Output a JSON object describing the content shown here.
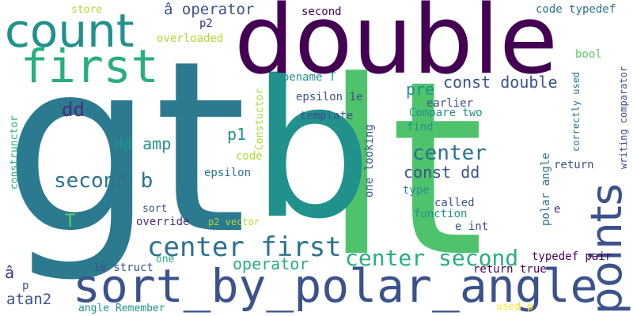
{
  "palette": {
    "background": "#ffffff",
    "dark_purple": "#440154",
    "purple": "#472d7b",
    "indigo": "#3b528b",
    "blue": "#2c728e",
    "teal": "#21918c",
    "green_teal": "#28ae80",
    "green": "#5ec962",
    "bright_green": "#4ec36b",
    "lime": "#addc30",
    "yellow": "#fde725"
  },
  "words": [
    {
      "text": "lt",
      "color": "#4ec36b"
    },
    {
      "text": "gt",
      "color": "#2c7a8f"
    },
    {
      "text": "b",
      "color": "#21918c"
    },
    {
      "text": "double",
      "color": "#440154"
    },
    {
      "text": "count",
      "color": "#21918c"
    },
    {
      "text": "first",
      "color": "#28ae80"
    },
    {
      "text": "points",
      "color": "#3b528b"
    },
    {
      "text": "sort_by_polar_angle",
      "color": "#3b528b"
    },
    {
      "text": "center first",
      "color": "#2c728e"
    },
    {
      "text": "center second",
      "color": "#28ae80"
    },
    {
      "text": "center",
      "color": "#2c728e"
    },
    {
      "text": "second b",
      "color": "#2c728e"
    },
    {
      "text": "const double",
      "color": "#3b528b"
    },
    {
      "text": "const dd",
      "color": "#3b528b"
    },
    {
      "text": "operator",
      "color": "#28ae80"
    },
    {
      "text": "â operator",
      "color": "#3b528b"
    },
    {
      "text": "dd",
      "color": "#472d7b"
    },
    {
      "text": "dd amp",
      "color": "#21918c"
    },
    {
      "text": "pre",
      "color": "#21918c"
    },
    {
      "text": "p1",
      "color": "#21918c"
    },
    {
      "text": "atan2",
      "color": "#3b528b"
    },
    {
      "text": "T",
      "color": "#5ec962"
    },
    {
      "text": "â",
      "color": "#472d7b"
    },
    {
      "text": "store",
      "color": "#addc30"
    },
    {
      "text": "second",
      "color": "#440154"
    },
    {
      "text": "p2",
      "color": "#472d7b"
    },
    {
      "text": "overloaded",
      "color": "#addc30"
    },
    {
      "text": "code typedef",
      "color": "#2c728e"
    },
    {
      "text": "bool",
      "color": "#5ec962"
    },
    {
      "text": "typename T",
      "color": "#21918c"
    },
    {
      "text": "epsilon 1e",
      "color": "#3b528b"
    },
    {
      "text": "earlier",
      "color": "#3b528b"
    },
    {
      "text": "Compare two",
      "color": "#21918c"
    },
    {
      "text": "template",
      "color": "#3b528b"
    },
    {
      "text": "find",
      "color": "#21918c"
    },
    {
      "text": "code",
      "color": "#addc30"
    },
    {
      "text": "epsilon",
      "color": "#2c728e"
    },
    {
      "text": "type",
      "color": "#21918c"
    },
    {
      "text": "called",
      "color": "#3b528b"
    },
    {
      "text": "function",
      "color": "#21918c"
    },
    {
      "text": "e int",
      "color": "#3b528b"
    },
    {
      "text": "sort",
      "color": "#3b528b"
    },
    {
      "text": "override",
      "color": "#472d7b"
    },
    {
      "text": "p2 vector",
      "color": "#addc30"
    },
    {
      "text": "one",
      "color": "#28ae80"
    },
    {
      "text": "1e struct",
      "color": "#3b528b"
    },
    {
      "text": "p",
      "color": "#3b528b"
    },
    {
      "text": "angle Remember",
      "color": "#21918c"
    },
    {
      "text": "return true",
      "color": "#440154"
    },
    {
      "text": "typedef pair",
      "color": "#440154"
    },
    {
      "text": "e",
      "color": "#472d7b"
    },
    {
      "text": "return",
      "color": "#3b528b"
    },
    {
      "text": "used p",
      "color": "#fde725"
    },
    {
      "text": "Constuctor",
      "color": "#addc30"
    },
    {
      "text": "construnctor",
      "color": "#28ae80"
    },
    {
      "text": "one looking",
      "color": "#3b528b"
    },
    {
      "text": "polar angle",
      "color": "#2c728e"
    },
    {
      "text": "correctly used",
      "color": "#2c728e"
    },
    {
      "text": "writing comparator",
      "color": "#3b528b"
    }
  ]
}
